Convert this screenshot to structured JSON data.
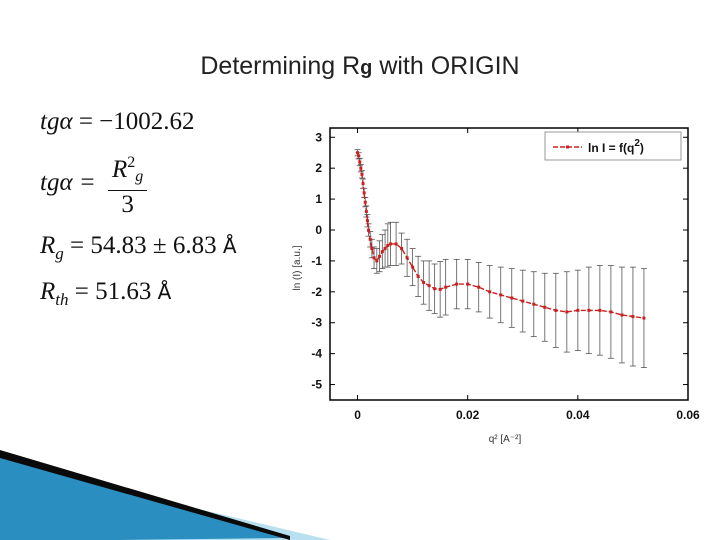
{
  "slide": {
    "title_main": "Determining R",
    "title_sub": "g",
    "title_rest": " with ORIGIN"
  },
  "equations": {
    "eq1_lhs": "tgα",
    "eq1_rhs": "= −1002.62",
    "eq2_lhs": "tgα =",
    "eq2_num_var": "R",
    "eq2_num_sup": "2",
    "eq2_num_sub": "g",
    "eq2_den": "3",
    "eq3_var": "R",
    "eq3_sub": "g",
    "eq3_rhs": "= 54.83 ± 6.83",
    "eq3_unit": "Å",
    "eq4_var": "R",
    "eq4_sub": "th",
    "eq4_rhs": "= 51.63",
    "eq4_unit": "Å"
  },
  "chart_data": {
    "type": "line",
    "xlabel": "q² [A⁻²]",
    "ylabel": "ln (I) [a.u.]",
    "xlim": [
      -0.005,
      0.06
    ],
    "ylim": [
      -5.5,
      3.3
    ],
    "x_ticks": [
      "0",
      "0.02",
      "0.04",
      "0.06"
    ],
    "x_tick_values": [
      0,
      0.02,
      0.04,
      0.06
    ],
    "y_ticks": [
      "3",
      "2",
      "1",
      "0",
      "-1",
      "-2",
      "-3",
      "-4",
      "-5"
    ],
    "y_tick_values": [
      3,
      2,
      1,
      0,
      -1,
      -2,
      -3,
      -4,
      -5
    ],
    "legend_label": "ln I = f(q",
    "legend_sup": "2",
    "legend_close": ")",
    "legend_position": "top-right",
    "series": [
      {
        "name": "ln I = f(q2)",
        "color": "#cc2020",
        "x": [
          0.0,
          0.0002,
          0.0004,
          0.0006,
          0.0008,
          0.001,
          0.0012,
          0.0014,
          0.0016,
          0.0018,
          0.002,
          0.0023,
          0.0026,
          0.003,
          0.0035,
          0.004,
          0.0045,
          0.005,
          0.0055,
          0.006,
          0.007,
          0.008,
          0.009,
          0.01,
          0.011,
          0.012,
          0.013,
          0.014,
          0.015,
          0.016,
          0.018,
          0.02,
          0.022,
          0.024,
          0.026,
          0.028,
          0.03,
          0.032,
          0.034,
          0.036,
          0.038,
          0.04,
          0.042,
          0.044,
          0.046,
          0.048,
          0.05,
          0.052
        ],
        "y": [
          2.5,
          2.4,
          2.2,
          2.0,
          1.8,
          1.5,
          1.2,
          0.9,
          0.6,
          0.3,
          0.0,
          -0.3,
          -0.6,
          -0.9,
          -1.0,
          -0.85,
          -0.7,
          -0.6,
          -0.5,
          -0.45,
          -0.45,
          -0.6,
          -0.9,
          -1.2,
          -1.5,
          -1.7,
          -1.8,
          -1.9,
          -1.92,
          -1.85,
          -1.75,
          -1.75,
          -1.85,
          -2.0,
          -2.1,
          -2.2,
          -2.3,
          -2.4,
          -2.5,
          -2.6,
          -2.65,
          -2.6,
          -2.6,
          -2.6,
          -2.65,
          -2.75,
          -2.8,
          -2.85
        ],
        "err": [
          0.1,
          0.1,
          0.12,
          0.12,
          0.12,
          0.15,
          0.15,
          0.15,
          0.18,
          0.2,
          0.2,
          0.25,
          0.3,
          0.35,
          0.4,
          0.5,
          0.55,
          0.6,
          0.7,
          0.7,
          0.7,
          0.5,
          0.6,
          0.6,
          0.65,
          0.7,
          0.8,
          0.8,
          0.9,
          0.9,
          0.8,
          0.8,
          0.8,
          0.85,
          0.9,
          0.95,
          1.0,
          1.05,
          1.1,
          1.2,
          1.3,
          1.3,
          1.4,
          1.45,
          1.5,
          1.55,
          1.6,
          1.6
        ]
      }
    ]
  },
  "colors": {
    "series": "#cc2020",
    "deco_dark": "#0a0a0a",
    "deco_blue": "#2a8fc0",
    "deco_light": "#b8e0f0"
  }
}
